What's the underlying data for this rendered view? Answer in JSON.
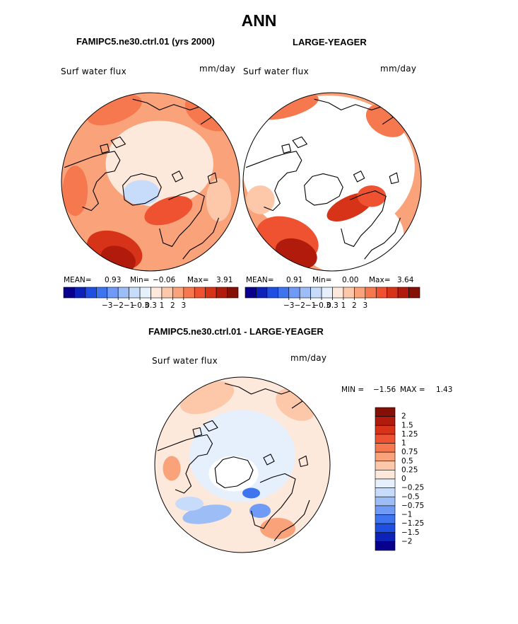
{
  "chart_data": {
    "type": "heatmap",
    "title": "ANN",
    "colors": {
      "land_outline": "#000000",
      "background": "#ffffff"
    },
    "panels": [
      {
        "id": "model",
        "title": "FAMIPC5.ne30.ctrl.01 (yrs 2000)",
        "variable": "Surf water flux",
        "units": "mm/day",
        "stats": {
          "mean_label": "MEAN=",
          "mean": "0.93",
          "min_label": "Min=",
          "min": "−0.06",
          "max_label": "Max=",
          "max": "3.91"
        },
        "colorbar": {
          "ticks": [
            "−3",
            "−2",
            "−1",
            "−0.3",
            "0.3",
            "1",
            "2",
            "3"
          ],
          "colors": [
            "#08008c",
            "#0d22b8",
            "#1f4fe0",
            "#3f74ef",
            "#6f9af5",
            "#9dbdf7",
            "#c7dbfb",
            "#e6f0fd",
            "#fde8dc",
            "#fcc8a9",
            "#faa27a",
            "#f6784f",
            "#ef5230",
            "#d63318",
            "#b01b0c",
            "#841006"
          ]
        }
      },
      {
        "id": "obs",
        "title": "LARGE-YEAGER",
        "variable": "Surf water flux",
        "units": "mm/day",
        "stats": {
          "mean_label": "MEAN=",
          "mean": "0.91",
          "min_label": "Min=",
          "min": "0.00",
          "max_label": "Max=",
          "max": "3.64"
        },
        "colorbar": {
          "ticks": [
            "−3",
            "−2",
            "−1",
            "−0.3",
            "0.3",
            "1",
            "2",
            "3"
          ],
          "colors": [
            "#08008c",
            "#0d22b8",
            "#1f4fe0",
            "#3f74ef",
            "#6f9af5",
            "#9dbdf7",
            "#c7dbfb",
            "#e6f0fd",
            "#fde8dc",
            "#fcc8a9",
            "#faa27a",
            "#f6784f",
            "#ef5230",
            "#d63318",
            "#b01b0c",
            "#841006"
          ]
        }
      },
      {
        "id": "diff",
        "title": "FAMIPC5.ne30.ctrl.01 - LARGE-YEAGER",
        "variable": "Surf water flux",
        "units": "mm/day",
        "stats": {
          "min_label": "MIN =",
          "min": "−1.56",
          "max_label": "MAX =",
          "max": "1.43"
        },
        "colorbar": {
          "ticks": [
            "2",
            "1.5",
            "1.25",
            "1",
            "0.75",
            "0.5",
            "0.25",
            "0",
            "−0.25",
            "−0.5",
            "−0.75",
            "−1",
            "−1.25",
            "−1.5",
            "−2"
          ],
          "colors": [
            "#841006",
            "#b01b0c",
            "#d63318",
            "#ef5230",
            "#f6784f",
            "#faa27a",
            "#fcc8a9",
            "#fde8dc",
            "#e6f0fd",
            "#c7dbfb",
            "#9dbdf7",
            "#6f9af5",
            "#3f74ef",
            "#1f4fe0",
            "#0d22b8",
            "#08008c"
          ]
        }
      }
    ]
  }
}
